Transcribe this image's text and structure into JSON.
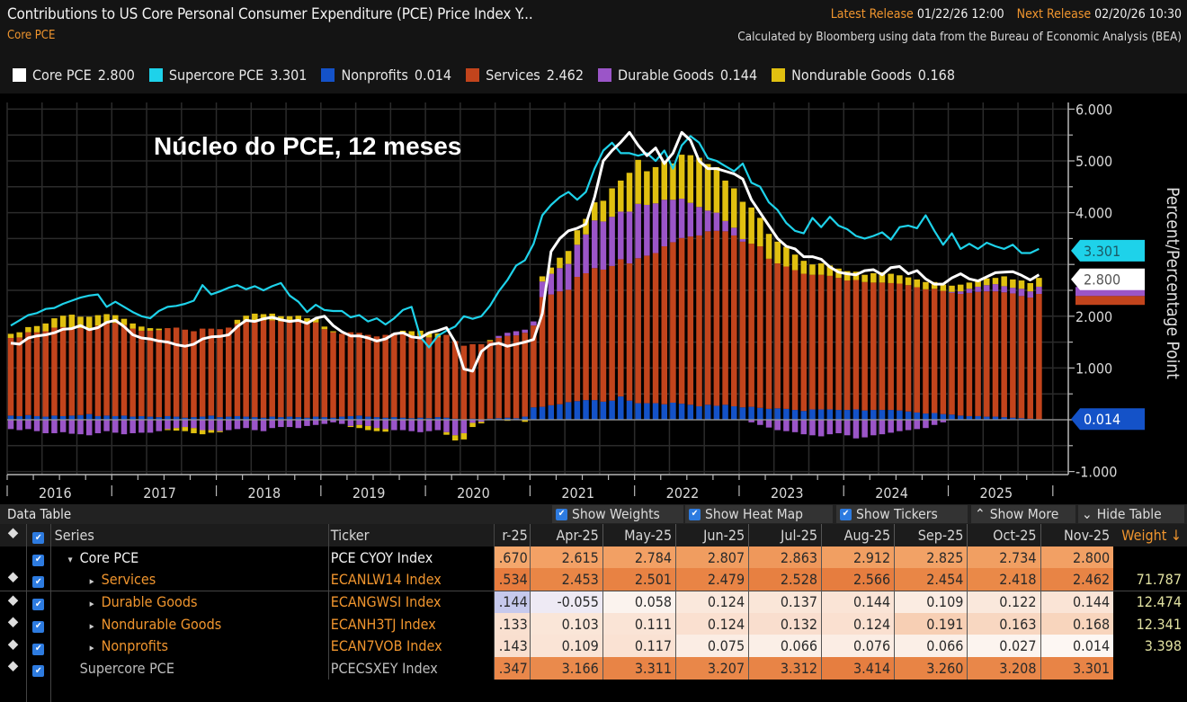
{
  "header": {
    "title": "Contributions to US Core Personal Consumer Expenditure (PCE) Price Index Y...",
    "subtitle": "Core PCE",
    "latest_release_label": "Latest Release",
    "latest_release_value": "01/22/26 12:00",
    "next_release_label": "Next Release",
    "next_release_value": "02/20/26 10:30",
    "source": "Calculated by Bloomberg using data from the Bureau of Economic Analysis (BEA)"
  },
  "legend": [
    {
      "name": "Core PCE",
      "value": "2.800",
      "color": "#ffffff"
    },
    {
      "name": "Supercore PCE",
      "value": "3.301",
      "color": "#1ed2ea"
    },
    {
      "name": "Nonprofits",
      "value": "0.014",
      "color": "#1452c8"
    },
    {
      "name": "Services",
      "value": "2.462",
      "color": "#c2441c"
    },
    {
      "name": "Durable Goods",
      "value": "0.144",
      "color": "#9b55c8"
    },
    {
      "name": "Nondurable Goods",
      "value": "0.168",
      "color": "#e0c010"
    }
  ],
  "overlay_title": "Núcleo do PCE, 12 meses",
  "chart_data": {
    "type": "bar",
    "stacked": true,
    "title": "Contributions to US Core PCE Price Index YoY",
    "xlabel": "",
    "ylabel": "Percent/Percentage Point",
    "ylim": [
      -1,
      6.2
    ],
    "yticks": [
      "6.000",
      "5.000",
      "4.000",
      "2.000",
      "1.000",
      "-1.000"
    ],
    "ytick_values": [
      6,
      5,
      4,
      2,
      1,
      -1
    ],
    "grid": true,
    "x_start": "2016-01",
    "x_end": "2025-11",
    "x_tick_labels": [
      "2016",
      "2017",
      "2018",
      "2019",
      "2020",
      "2021",
      "2022",
      "2023",
      "2024",
      "2025"
    ],
    "last_value_labels": [
      {
        "series": "Supercore PCE",
        "value": "3.301",
        "color": "#1ed2ea",
        "text_color": "#1b5a66"
      },
      {
        "series": "Core PCE",
        "value": "2.800",
        "color": "#ffffff",
        "text_color": "#555555"
      },
      {
        "series": "Nonprofits",
        "value": "0.014",
        "color": "#1452c8",
        "text_color": "#ffffff"
      }
    ],
    "series": [
      {
        "name": "Nonprofits",
        "kind": "bar",
        "color": "#1452c8",
        "values": [
          0.08,
          0.07,
          0.09,
          0.07,
          0.06,
          0.08,
          0.07,
          0.08,
          0.09,
          0.11,
          0.07,
          0.08,
          0.07,
          0.08,
          0.06,
          0.07,
          0.06,
          0.05,
          0.07,
          0.06,
          0.04,
          0.05,
          0.06,
          0.08,
          0.05,
          0.06,
          0.07,
          0.06,
          0.05,
          0.04,
          0.06,
          0.05,
          0.06,
          0.05,
          0.04,
          0.06,
          0.05,
          0.04,
          0.06,
          0.07,
          0.08,
          0.06,
          0.05,
          0.04,
          0.05,
          0.04,
          0.03,
          0.04,
          0.03,
          0.05,
          0.04,
          0.02,
          0.01,
          0.02,
          0.01,
          0.02,
          0.03,
          0.04,
          0.03,
          0.06,
          0.24,
          0.25,
          0.28,
          0.3,
          0.34,
          0.36,
          0.38,
          0.38,
          0.35,
          0.37,
          0.45,
          0.37,
          0.32,
          0.32,
          0.32,
          0.3,
          0.33,
          0.31,
          0.29,
          0.26,
          0.29,
          0.27,
          0.29,
          0.26,
          0.24,
          0.25,
          0.23,
          0.21,
          0.22,
          0.21,
          0.19,
          0.17,
          0.2,
          0.2,
          0.2,
          0.19,
          0.19,
          0.2,
          0.18,
          0.19,
          0.19,
          0.19,
          0.18,
          0.16,
          0.14,
          0.12,
          0.13,
          0.11,
          0.1,
          0.08,
          0.07,
          0.07,
          0.06,
          0.06,
          0.05,
          0.04,
          0.03,
          0.02,
          0.01
        ]
      },
      {
        "name": "Services",
        "kind": "bar",
        "color": "#c2441c",
        "values": [
          1.5,
          1.52,
          1.6,
          1.62,
          1.65,
          1.7,
          1.72,
          1.7,
          1.68,
          1.66,
          1.75,
          1.78,
          1.8,
          1.75,
          1.7,
          1.65,
          1.66,
          1.68,
          1.7,
          1.72,
          1.7,
          1.66,
          1.7,
          1.68,
          1.7,
          1.72,
          1.78,
          1.85,
          1.86,
          1.88,
          1.86,
          1.85,
          1.82,
          1.86,
          1.84,
          1.82,
          1.7,
          1.65,
          1.6,
          1.62,
          1.6,
          1.58,
          1.56,
          1.6,
          1.62,
          1.64,
          1.6,
          1.58,
          1.56,
          1.54,
          1.6,
          1.5,
          1.42,
          1.44,
          1.45,
          1.5,
          1.55,
          1.58,
          1.6,
          1.62,
          1.58,
          2.12,
          2.14,
          2.18,
          2.17,
          2.4,
          2.45,
          2.55,
          2.55,
          2.6,
          2.65,
          2.65,
          2.8,
          2.85,
          2.9,
          3.05,
          3.1,
          3.2,
          3.25,
          3.3,
          3.35,
          3.38,
          3.35,
          3.3,
          3.2,
          3.15,
          3.12,
          2.9,
          2.8,
          2.75,
          2.7,
          2.65,
          2.6,
          2.6,
          2.58,
          2.55,
          2.5,
          2.5,
          2.48,
          2.46,
          2.46,
          2.45,
          2.45,
          2.44,
          2.42,
          2.4,
          2.4,
          2.38,
          2.35,
          2.35,
          2.38,
          2.4,
          2.42,
          2.42,
          2.41,
          2.4,
          2.36,
          2.34,
          2.42
        ]
      },
      {
        "name": "Durable Goods",
        "kind": "bar",
        "color": "#9b55c8",
        "values": [
          -0.18,
          -0.2,
          -0.18,
          -0.22,
          -0.26,
          -0.26,
          -0.24,
          -0.27,
          -0.28,
          -0.3,
          -0.26,
          -0.22,
          -0.25,
          -0.28,
          -0.26,
          -0.25,
          -0.25,
          -0.22,
          -0.18,
          -0.16,
          -0.14,
          -0.16,
          -0.2,
          -0.2,
          -0.22,
          -0.2,
          -0.18,
          -0.16,
          -0.2,
          -0.22,
          -0.16,
          -0.14,
          -0.14,
          -0.16,
          -0.12,
          -0.1,
          -0.08,
          -0.05,
          -0.08,
          -0.12,
          -0.1,
          -0.12,
          -0.16,
          -0.18,
          -0.2,
          -0.2,
          -0.22,
          -0.24,
          -0.22,
          -0.2,
          -0.24,
          -0.3,
          -0.26,
          -0.06,
          -0.04,
          0.0,
          0.04,
          0.06,
          0.08,
          0.06,
          0.08,
          0.3,
          0.4,
          0.45,
          0.5,
          0.62,
          0.75,
          0.92,
          0.93,
          0.95,
          0.92,
          1.0,
          1.05,
          0.98,
          0.96,
          0.9,
          0.82,
          0.76,
          0.65,
          0.55,
          0.4,
          0.35,
          0.2,
          0.15,
          0.05,
          -0.05,
          -0.1,
          -0.15,
          -0.2,
          -0.22,
          -0.24,
          -0.28,
          -0.3,
          -0.32,
          -0.28,
          -0.26,
          -0.3,
          -0.36,
          -0.34,
          -0.3,
          -0.28,
          -0.25,
          -0.22,
          -0.2,
          -0.18,
          -0.16,
          -0.1,
          -0.05,
          0.02,
          0.05,
          0.08,
          0.1,
          0.12,
          0.14,
          0.12,
          0.11,
          0.14,
          0.12,
          0.14
        ]
      },
      {
        "name": "Nondurable Goods",
        "kind": "bar",
        "color": "#e0c010",
        "values": [
          0.08,
          0.1,
          0.1,
          0.12,
          0.15,
          0.18,
          0.22,
          0.25,
          0.22,
          0.22,
          0.2,
          0.18,
          0.15,
          0.12,
          0.1,
          0.08,
          0.05,
          0.03,
          -0.02,
          -0.05,
          -0.08,
          -0.1,
          -0.08,
          -0.05,
          -0.02,
          0.0,
          0.08,
          0.1,
          0.14,
          0.12,
          0.13,
          0.1,
          0.12,
          0.1,
          0.08,
          0.08,
          0.05,
          0.02,
          0.0,
          -0.02,
          -0.06,
          -0.08,
          -0.06,
          -0.05,
          0.0,
          0.04,
          0.08,
          0.1,
          0.1,
          0.08,
          -0.05,
          -0.1,
          -0.12,
          -0.08,
          -0.03,
          0.02,
          0.0,
          -0.02,
          0.0,
          -0.04,
          0.0,
          0.1,
          0.12,
          0.2,
          0.25,
          0.28,
          0.3,
          0.35,
          0.4,
          0.55,
          0.6,
          0.75,
          0.85,
          0.65,
          0.7,
          0.75,
          0.7,
          0.85,
          0.92,
          0.95,
          0.9,
          0.88,
          0.78,
          0.76,
          0.72,
          0.7,
          0.55,
          0.48,
          0.42,
          0.38,
          0.3,
          0.25,
          0.2,
          0.22,
          0.2,
          0.18,
          0.18,
          0.16,
          0.14,
          0.18,
          0.2,
          0.18,
          0.16,
          0.15,
          0.15,
          0.14,
          0.13,
          0.12,
          0.12,
          0.13,
          0.12,
          0.11,
          0.13,
          0.12,
          0.19,
          0.16,
          0.16,
          0.16,
          0.17
        ]
      },
      {
        "name": "Core PCE",
        "kind": "line",
        "color": "#ffffff",
        "values": [
          1.48,
          1.46,
          1.58,
          1.62,
          1.64,
          1.68,
          1.75,
          1.76,
          1.82,
          1.74,
          1.78,
          1.88,
          1.92,
          1.8,
          1.64,
          1.58,
          1.56,
          1.52,
          1.5,
          1.45,
          1.42,
          1.46,
          1.56,
          1.6,
          1.61,
          1.64,
          1.8,
          1.92,
          1.9,
          1.95,
          1.98,
          1.93,
          1.9,
          1.92,
          1.86,
          1.96,
          2.0,
          1.82,
          1.7,
          1.62,
          1.62,
          1.58,
          1.52,
          1.56,
          1.66,
          1.68,
          1.6,
          1.58,
          1.68,
          1.72,
          1.78,
          1.5,
          0.98,
          0.94,
          1.32,
          1.45,
          1.48,
          1.42,
          1.46,
          1.5,
          1.55,
          2.05,
          3.25,
          3.5,
          3.65,
          3.7,
          3.78,
          4.3,
          5.0,
          5.2,
          5.36,
          5.55,
          5.3,
          5.1,
          5.25,
          4.95,
          5.15,
          5.55,
          5.4,
          5.0,
          4.85,
          4.85,
          4.8,
          4.75,
          4.65,
          4.25,
          4.0,
          3.75,
          3.5,
          3.35,
          3.3,
          3.15,
          3.15,
          3.1,
          2.95,
          2.85,
          2.82,
          2.8,
          2.88,
          2.9,
          2.8,
          2.94,
          2.96,
          2.82,
          2.88,
          2.72,
          2.62,
          2.62,
          2.74,
          2.82,
          2.72,
          2.68,
          2.76,
          2.84,
          2.85,
          2.86,
          2.79,
          2.7,
          2.8
        ]
      },
      {
        "name": "Supercore PCE",
        "kind": "line",
        "color": "#1ed2ea",
        "values": [
          1.82,
          1.92,
          2.02,
          2.06,
          2.14,
          2.16,
          2.24,
          2.3,
          2.36,
          2.4,
          2.42,
          2.18,
          2.28,
          2.18,
          2.08,
          2.0,
          1.96,
          2.1,
          2.18,
          2.2,
          2.24,
          2.3,
          2.6,
          2.42,
          2.48,
          2.55,
          2.6,
          2.52,
          2.58,
          2.5,
          2.58,
          2.64,
          2.4,
          2.28,
          2.08,
          2.22,
          2.12,
          2.1,
          2.1,
          1.98,
          2.02,
          1.9,
          1.96,
          1.84,
          1.96,
          2.12,
          2.18,
          1.6,
          1.4,
          1.62,
          1.72,
          1.8,
          2.0,
          1.95,
          2.0,
          2.2,
          2.48,
          2.7,
          2.98,
          3.08,
          3.4,
          3.95,
          4.15,
          4.3,
          4.4,
          4.25,
          4.4,
          4.85,
          5.2,
          5.35,
          5.15,
          5.15,
          5.1,
          5.15,
          5.0,
          5.2,
          4.85,
          5.3,
          5.48,
          5.35,
          5.05,
          5.0,
          4.9,
          4.8,
          4.95,
          4.58,
          4.5,
          4.2,
          4.05,
          3.8,
          3.65,
          3.6,
          3.9,
          3.72,
          3.92,
          3.75,
          3.68,
          3.55,
          3.5,
          3.55,
          3.62,
          3.48,
          3.72,
          3.75,
          3.7,
          3.95,
          3.65,
          3.38,
          3.6,
          3.3,
          3.4,
          3.3,
          3.42,
          3.35,
          3.3,
          3.38,
          3.22,
          3.22,
          3.3
        ]
      }
    ]
  },
  "data_table": {
    "title": "Data Table",
    "buttons": [
      {
        "label": "Show Weights",
        "checked": true
      },
      {
        "label": "Show Heat Map",
        "checked": true
      },
      {
        "label": "Show Tickers",
        "checked": true
      },
      {
        "label": "Show More",
        "icon": "double-chevron-up"
      },
      {
        "label": "Hide Table",
        "icon": "double-chevron-down"
      }
    ],
    "columns": {
      "series": "Series",
      "ticker": "Ticker",
      "partial": "r-25",
      "months": [
        "Apr-25",
        "May-25",
        "Jun-25",
        "Jul-25",
        "Aug-25",
        "Sep-25",
        "Oct-25",
        "Nov-25"
      ],
      "weight": "Weight ↓"
    },
    "rows": [
      {
        "series": "Core PCE",
        "expander": "▾",
        "ticker": "PCE CYOY Index",
        "style": "white",
        "partial": ".670",
        "values": [
          "2.615",
          "2.784",
          "2.807",
          "2.863",
          "2.912",
          "2.825",
          "2.734",
          "2.800"
        ],
        "weight": "",
        "heat": [
          "#f4a76c",
          "#f3a165",
          "#f2a064",
          "#f09d60",
          "#ef985b",
          "#f19f62",
          "#f2a266",
          "#f19f62",
          "#f2a064"
        ]
      },
      {
        "series": "Services",
        "expander": "▸",
        "ticker": "ECANLW14 Index",
        "style": "orange",
        "partial": ".534",
        "values": [
          "2.453",
          "2.501",
          "2.479",
          "2.528",
          "2.566",
          "2.454",
          "2.418",
          "2.462"
        ],
        "weight": "71.787",
        "heat": [
          "#e77c3e",
          "#e98646",
          "#e88243",
          "#e98445",
          "#e78041",
          "#e67d3f",
          "#e98646",
          "#ea8948",
          "#e88445"
        ]
      },
      {
        "series": "Durable Goods",
        "expander": "▸",
        "ticker": "ECANGWSI Index",
        "style": "orange",
        "partial": ".144",
        "values": [
          "-0.055",
          "0.058",
          "0.124",
          "0.137",
          "0.144",
          "0.109",
          "0.122",
          "0.144"
        ],
        "weight": "12.474",
        "heat": [
          "#c6c9ec",
          "#eeeaf4",
          "#fbf3ee",
          "#fae8dc",
          "#fae6d8",
          "#fae4d6",
          "#fbece2",
          "#fae8dc",
          "#fae4d6"
        ]
      },
      {
        "series": "Nondurable Goods",
        "expander": "▸",
        "ticker": "ECANH3TJ Index",
        "style": "orange",
        "partial": ".133",
        "values": [
          "0.103",
          "0.111",
          "0.124",
          "0.132",
          "0.124",
          "0.191",
          "0.163",
          "0.168"
        ],
        "weight": "12.341",
        "heat": [
          "#f9e0d0",
          "#fae6d8",
          "#fae4d6",
          "#fae0d0",
          "#f9dece",
          "#fae0d0",
          "#f7cfb4",
          "#f8d7c1",
          "#f8d5bd"
        ]
      },
      {
        "series": "Nonprofits",
        "expander": "▸",
        "ticker": "ECAN7VOB Index",
        "style": "orange",
        "partial": ".143",
        "values": [
          "0.109",
          "0.117",
          "0.075",
          "0.066",
          "0.076",
          "0.066",
          "0.027",
          "0.014"
        ],
        "weight": "3.398",
        "heat": [
          "#f9dfcf",
          "#fae4d6",
          "#fae2d3",
          "#fbede4",
          "#fbefe7",
          "#fbede4",
          "#fbefe7",
          "#fcf4ef",
          "#fdf7f3"
        ]
      },
      {
        "series": "Supercore PCE",
        "expander": "",
        "ticker": "PCECSXEY Index",
        "style": "grey",
        "partial": ".347",
        "values": [
          "3.166",
          "3.311",
          "3.207",
          "3.312",
          "3.414",
          "3.260",
          "3.208",
          "3.301"
        ],
        "weight": "",
        "heat": [
          "#e9874a",
          "#ea8a4c",
          "#e88446",
          "#e98749",
          "#e88446",
          "#e67e40",
          "#e88445",
          "#e98749",
          "#e88446"
        ]
      }
    ]
  }
}
